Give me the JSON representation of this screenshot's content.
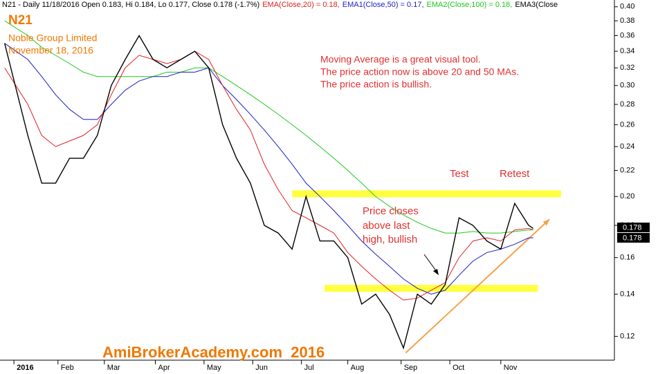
{
  "chart_data": {
    "type": "line",
    "symbol": "N21",
    "company": "Noble Group Limited",
    "date": "November 18, 2016",
    "header_tail": "EMA3(Close",
    "note": [
      "Moving Average is a great visual tool.",
      "The price action now is above 20 and 50 MAs.",
      "The price action is bullish."
    ],
    "test_label": "Test",
    "retest_label": "Retest",
    "breakout_note": [
      "Price closes",
      "above last",
      "high, bullish"
    ],
    "watermark": "AmiBrokerAcademy.com  2016",
    "log_scale": true,
    "xlim": [
      -6,
      259
    ],
    "ylim": [
      0.11,
      0.41
    ],
    "xticks": [
      {
        "value": 0,
        "label": "2016"
      },
      {
        "value": 19,
        "label": "Feb"
      },
      {
        "value": 39,
        "label": "Mar"
      },
      {
        "value": 61,
        "label": "Apr"
      },
      {
        "value": 82,
        "label": "May"
      },
      {
        "value": 103,
        "label": "Jun"
      },
      {
        "value": 124,
        "label": "Jul"
      },
      {
        "value": 144,
        "label": "Aug"
      },
      {
        "value": 167,
        "label": "Sep"
      },
      {
        "value": 188,
        "label": "Oct"
      },
      {
        "value": 210,
        "label": "Nov"
      }
    ],
    "yticks": [
      0.12,
      0.14,
      0.16,
      0.18,
      {
        "value": 0.2,
        "label": "0.20"
      },
      0.22,
      0.24,
      0.26,
      0.28,
      {
        "value": 0.3,
        "label": "0.30"
      },
      0.32,
      0.34,
      0.36,
      0.38,
      {
        "value": 0.4,
        "label": "0.40"
      }
    ],
    "x": [
      -4,
      6,
      12,
      18,
      24,
      30,
      36,
      42,
      48,
      54,
      60,
      66,
      72,
      78,
      84,
      90,
      96,
      102,
      108,
      114,
      120,
      126,
      132,
      138,
      144,
      150,
      156,
      162,
      168,
      174,
      180,
      186,
      192,
      198,
      204,
      210,
      216,
      222,
      224
    ],
    "series": [
      {
        "name": "N21 - Daily 11/18/2016 Open 0.183, Hi 0.184, Lo 0.177, Close 0.178 (-1.7%)",
        "color": "#000000",
        "values": [
          0.35,
          0.25,
          0.21,
          0.21,
          0.23,
          0.23,
          0.25,
          0.3,
          0.33,
          0.36,
          0.33,
          0.32,
          0.33,
          0.34,
          0.32,
          0.26,
          0.23,
          0.21,
          0.18,
          0.175,
          0.165,
          0.2,
          0.17,
          0.17,
          0.16,
          0.135,
          0.14,
          0.13,
          0.115,
          0.14,
          0.135,
          0.145,
          0.185,
          0.18,
          0.17,
          0.165,
          0.195,
          0.18,
          0.178
        ]
      },
      {
        "name": "EMA(Close,20) = 0.18,",
        "color": "#e02020",
        "values": [
          0.32,
          0.28,
          0.25,
          0.24,
          0.245,
          0.25,
          0.26,
          0.29,
          0.32,
          0.335,
          0.33,
          0.325,
          0.33,
          0.34,
          0.33,
          0.3,
          0.275,
          0.255,
          0.225,
          0.205,
          0.19,
          0.185,
          0.18,
          0.175,
          0.163,
          0.155,
          0.148,
          0.142,
          0.137,
          0.138,
          0.142,
          0.146,
          0.16,
          0.17,
          0.172,
          0.17,
          0.177,
          0.178,
          0.177
        ]
      },
      {
        "name": "EMA1(Close,50) = 0.17,",
        "color": "#1c1cc8",
        "values": [
          0.35,
          0.33,
          0.31,
          0.29,
          0.275,
          0.265,
          0.265,
          0.28,
          0.295,
          0.305,
          0.31,
          0.31,
          0.315,
          0.315,
          0.32,
          0.3,
          0.285,
          0.27,
          0.255,
          0.24,
          0.225,
          0.21,
          0.2,
          0.19,
          0.18,
          0.17,
          0.162,
          0.155,
          0.148,
          0.143,
          0.14,
          0.142,
          0.15,
          0.158,
          0.163,
          0.165,
          0.168,
          0.172,
          0.172
        ]
      },
      {
        "name": "EMA2(Close,100) = 0.18,",
        "color": "#1cc81c",
        "values": [
          0.38,
          0.36,
          0.345,
          0.335,
          0.325,
          0.315,
          0.31,
          0.31,
          0.31,
          0.31,
          0.31,
          0.315,
          0.315,
          0.32,
          0.32,
          0.31,
          0.3,
          0.29,
          0.28,
          0.27,
          0.26,
          0.25,
          0.24,
          0.23,
          0.22,
          0.21,
          0.2,
          0.193,
          0.187,
          0.182,
          0.178,
          0.175,
          0.175,
          0.176,
          0.175,
          0.175,
          0.176,
          0.177,
          0.177
        ]
      }
    ],
    "levels": [
      {
        "value": 0.202,
        "x": [
          120,
          236
        ],
        "color": "#ffff40"
      },
      {
        "value": 0.143,
        "x": [
          134,
          226
        ],
        "color": "#ffff40"
      }
    ],
    "trend_line": {
      "x": [
        169,
        231
      ],
      "values": [
        0.113,
        0.184
      ],
      "color": "#f5a04a"
    },
    "last_values": [
      0.178,
      0.178
    ]
  }
}
